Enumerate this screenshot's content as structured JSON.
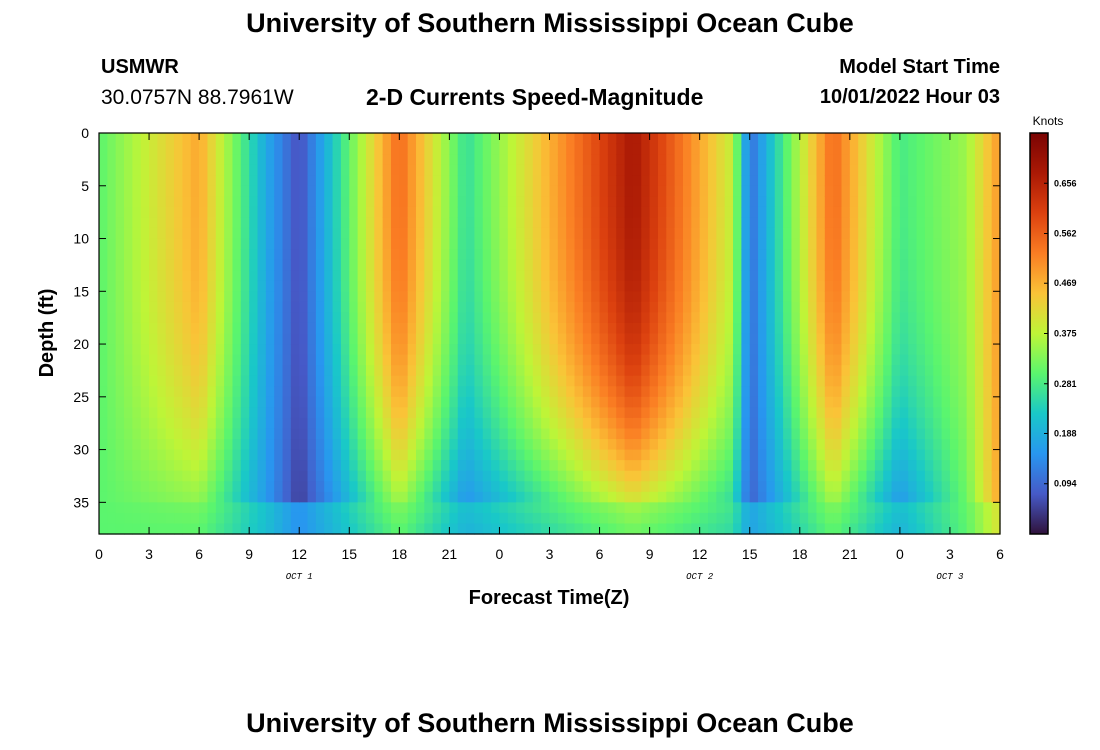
{
  "header": {
    "title": "University of Southern Mississippi Ocean Cube",
    "station_name": "USMWR",
    "station_coords": "30.0757N  88.7961W",
    "chart_title": "2-D Currents Speed-Magnitude",
    "start_label": "Model Start Time",
    "start_value": "10/01/2022 Hour 03"
  },
  "footer": {
    "title": "University of Southern Mississippi Ocean Cube"
  },
  "chart_data": {
    "type": "heatmap",
    "title": "2-D Currents Speed-Magnitude",
    "xlabel": "Forecast Time(Z)",
    "ylabel": "Depth (ft)",
    "x_tick_labels": [
      "0",
      "3",
      "6",
      "9",
      "12",
      "15",
      "18",
      "21",
      "0",
      "3",
      "6",
      "9",
      "12",
      "15",
      "18",
      "21",
      "0",
      "3",
      "6"
    ],
    "date_labels": [
      {
        "text": "OCT 1",
        "at_tick": 4
      },
      {
        "text": "OCT 2",
        "at_tick": 12
      },
      {
        "text": "OCT 3",
        "at_tick": 17
      }
    ],
    "y_ticks": [
      0,
      5,
      10,
      15,
      20,
      25,
      30,
      35
    ],
    "ylim": [
      38,
      0
    ],
    "colorbar": {
      "title": "Knots",
      "ticks": [
        "0.656",
        "0.562",
        "0.469",
        "0.375",
        "0.281",
        "0.188",
        "0.094"
      ],
      "range": [
        0.0,
        0.75
      ]
    },
    "grid": false,
    "speed_profile_knots": [
      {
        "hour": 0,
        "surface": 0.3,
        "bottom": 0.3
      },
      {
        "hour": 6,
        "surface": 0.48,
        "bottom": 0.3
      },
      {
        "hour": 10,
        "surface": 0.18,
        "bottom": 0.15
      },
      {
        "hour": 12,
        "surface": 0.06,
        "bottom": 0.04
      },
      {
        "hour": 18,
        "surface": 0.55,
        "bottom": 0.3
      },
      {
        "hour": 22,
        "surface": 0.26,
        "bottom": 0.12
      },
      {
        "hour": 32,
        "surface": 0.68,
        "bottom": 0.32
      },
      {
        "hour": 38,
        "surface": 0.38,
        "bottom": 0.22
      },
      {
        "hour": 39,
        "surface": 0.1,
        "bottom": 0.08
      },
      {
        "hour": 44,
        "surface": 0.55,
        "bottom": 0.3
      },
      {
        "hour": 48,
        "surface": 0.28,
        "bottom": 0.12
      },
      {
        "hour": 52,
        "surface": 0.35,
        "bottom": 0.3
      },
      {
        "hour": 54,
        "surface": 0.5,
        "bottom": 0.48
      }
    ]
  }
}
